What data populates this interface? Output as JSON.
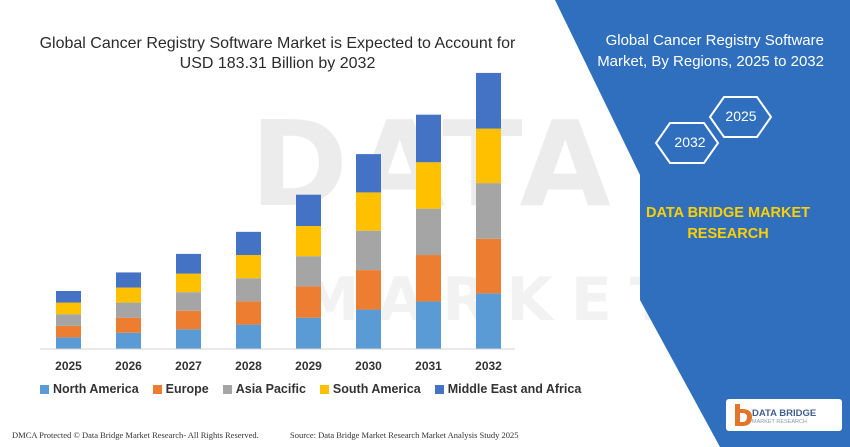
{
  "title_line1": "Global Cancer Registry Software Market is Expected to Account for",
  "title_line2": "USD 183.31 Billion by 2032",
  "watermark": "DATA BRIDGE",
  "watermark_line2": "MARKET RESEARCH",
  "right_panel": {
    "title_line1": "Global Cancer Registry Software",
    "title_line2": "Market, By Regions, 2025 to 2032",
    "hex_2025": "2025",
    "hex_2032": "2032",
    "brand_line1": "DATA BRIDGE MARKET",
    "brand_line2": "RESEARCH",
    "logo_text": "DATA BRIDGE",
    "logo_subtext": "MARKET RESEARCH",
    "panel_color": "#2f6fbd"
  },
  "footer": {
    "left": "DMCA Protected © Data Bridge Market Research- All Rights Reserved.",
    "right": "Source: Data Bridge Market Research Market Analysis Study 2025"
  },
  "chart_data": {
    "type": "bar",
    "stacked": true,
    "categories": [
      "2025",
      "2026",
      "2027",
      "2028",
      "2029",
      "2030",
      "2031",
      "2032"
    ],
    "series": [
      {
        "name": "North America",
        "color": "#5b9bd5",
        "values": [
          10,
          14,
          17,
          21,
          27,
          34,
          41,
          48
        ]
      },
      {
        "name": "Europe",
        "color": "#ed7d31",
        "values": [
          10,
          13,
          16,
          20,
          27,
          34,
          40,
          47
        ]
      },
      {
        "name": "Asia Pacific",
        "color": "#a5a5a5",
        "values": [
          10,
          13,
          16,
          20,
          26,
          34,
          40,
          48
        ]
      },
      {
        "name": "South America",
        "color": "#ffc000",
        "values": [
          10,
          13,
          16,
          20,
          26,
          33,
          40,
          47
        ]
      },
      {
        "name": "Middle East and Africa",
        "color": "#4472c4",
        "values": [
          10,
          13,
          17,
          20,
          27,
          33,
          41,
          48
        ]
      }
    ],
    "ylim": [
      0,
      250
    ],
    "grid": false,
    "legend_position": "bottom"
  }
}
